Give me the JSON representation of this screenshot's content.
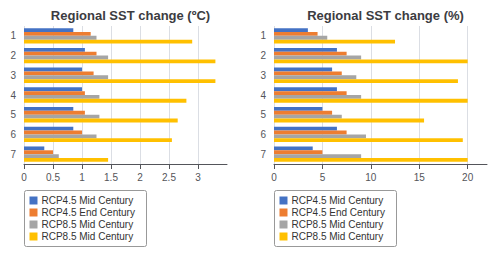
{
  "chart_data": [
    {
      "type": "bar",
      "orientation": "horizontal",
      "title": "Regional SST change (ºC)",
      "categories": [
        "1",
        "2",
        "3",
        "4",
        "5",
        "6",
        "7"
      ],
      "series": [
        {
          "name": "RCP4.5 Mid Century",
          "color": "#4472C4",
          "values": [
            0.85,
            1.05,
            1.0,
            1.0,
            0.85,
            0.85,
            0.35
          ]
        },
        {
          "name": "RCP4.5 End Century",
          "color": "#ED7D31",
          "values": [
            1.15,
            1.25,
            1.2,
            1.05,
            1.05,
            1.0,
            0.5
          ]
        },
        {
          "name": "RCP8.5 Mid Century",
          "color": "#A5A5A5",
          "values": [
            1.25,
            1.45,
            1.45,
            1.3,
            1.3,
            1.25,
            0.6
          ]
        },
        {
          "name": "RCP8.5 Mid Century",
          "color": "#FFC000",
          "values": [
            2.9,
            3.3,
            3.3,
            2.8,
            2.65,
            2.55,
            1.45
          ]
        }
      ],
      "xlim": [
        0,
        3.5
      ],
      "xticks": [
        0,
        0.5,
        1,
        1.5,
        2,
        2.5,
        3
      ],
      "grid": true,
      "legend": "lower left"
    },
    {
      "type": "bar",
      "orientation": "horizontal",
      "title": "Regional SST change (%)",
      "categories": [
        "1",
        "2",
        "3",
        "4",
        "5",
        "6",
        "7"
      ],
      "series": [
        {
          "name": "RCP4.5 Mid Century",
          "color": "#4472C4",
          "values": [
            3.5,
            6.5,
            6.0,
            6.5,
            5.0,
            6.5,
            4.0
          ]
        },
        {
          "name": "RCP4.5 End Century",
          "color": "#ED7D31",
          "values": [
            4.5,
            7.5,
            7.0,
            7.5,
            6.0,
            7.5,
            5.0
          ]
        },
        {
          "name": "RCP8.5 Mid Century",
          "color": "#A5A5A5",
          "values": [
            5.5,
            9.0,
            8.5,
            9.0,
            7.0,
            9.5,
            9.0
          ]
        },
        {
          "name": "RCP8.5 Mid Century",
          "color": "#FFC000",
          "values": [
            12.5,
            20.0,
            19.0,
            20.0,
            15.5,
            19.5,
            20.0
          ]
        }
      ],
      "xlim": [
        0,
        22
      ],
      "xticks": [
        0,
        5,
        10,
        15,
        20
      ],
      "grid": true,
      "legend": "lower left"
    }
  ]
}
